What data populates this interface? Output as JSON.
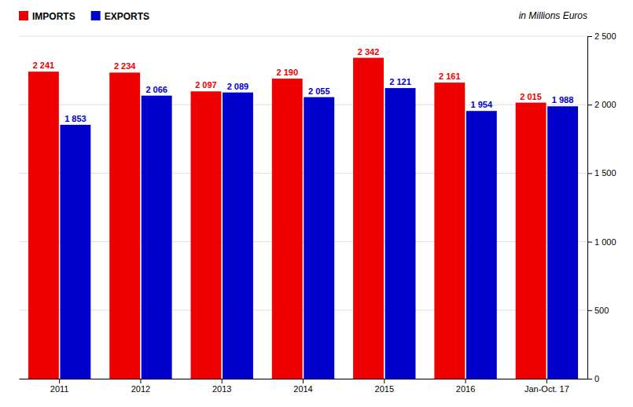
{
  "chart_data": {
    "type": "bar",
    "categories": [
      "2011",
      "2012",
      "2013",
      "2014",
      "2015",
      "2016",
      "Jan-Oct. 17"
    ],
    "series": [
      {
        "name": "IMPORTS",
        "color": "#ee0000",
        "values": [
          2241,
          2234,
          2097,
          2190,
          2342,
          2161,
          2015
        ],
        "value_labels": [
          "2 241",
          "2 234",
          "2 097",
          "2 190",
          "2 342",
          "2 161",
          "2 015"
        ]
      },
      {
        "name": "EXPORTS",
        "color": "#0000cc",
        "values": [
          1853,
          2066,
          2089,
          2055,
          2121,
          1954,
          1988
        ],
        "value_labels": [
          "1 853",
          "2 066",
          "2 089",
          "2 055",
          "2 121",
          "1 954",
          "1 988"
        ]
      }
    ],
    "ylim": [
      0,
      2500
    ],
    "yticks": [
      0,
      500,
      {
        "value": 1000,
        "label": "1 000"
      },
      {
        "value": 1500,
        "label": "1 500"
      },
      {
        "value": 2000,
        "label": "2 000"
      },
      {
        "value": 2500,
        "label": "2 500"
      }
    ],
    "ylabel": "in Millions Euros",
    "grid": true,
    "legend": "upper left",
    "data_labels": true
  }
}
